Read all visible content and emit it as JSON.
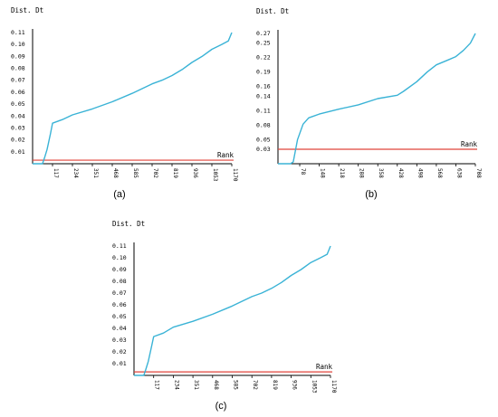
{
  "colors": {
    "curve": "#3ab3d6",
    "threshold": "#e0433a",
    "axis": "#000000",
    "text": "#000000"
  },
  "chart_data": [
    {
      "id": "a",
      "type": "line",
      "caption": "(a)",
      "ylabel": "Dist. Dt",
      "xlabel": "Rank",
      "yticks": [
        "0.01",
        "0.02",
        "0.03",
        "0.04",
        "0.05",
        "0.06",
        "0.07",
        "0.08",
        "0.09",
        "0.10",
        "0.11"
      ],
      "xticks": [
        "117",
        "234",
        "351",
        "468",
        "585",
        "702",
        "819",
        "936",
        "1053",
        "1170"
      ],
      "threshold": 0.003,
      "x": [
        0,
        58,
        70,
        85,
        105,
        117,
        175,
        234,
        351,
        468,
        585,
        702,
        760,
        819,
        878,
        936,
        995,
        1053,
        1110,
        1150,
        1170
      ],
      "y": [
        0.0,
        0.0,
        0.005,
        0.012,
        0.025,
        0.034,
        0.037,
        0.041,
        0.046,
        0.052,
        0.059,
        0.067,
        0.07,
        0.074,
        0.079,
        0.085,
        0.09,
        0.096,
        0.1,
        0.103,
        0.11
      ]
    },
    {
      "id": "b",
      "type": "line",
      "caption": "(b)",
      "ylabel": "Dist. Dt",
      "xlabel": "Rank",
      "yticks": [
        "0.03",
        "0.05",
        "0.08",
        "0.11",
        "0.14",
        "0.16",
        "0.19",
        "0.22",
        "0.25",
        "0.27"
      ],
      "xticks": [
        "78",
        "148",
        "218",
        "288",
        "358",
        "428",
        "498",
        "568",
        "638",
        "708"
      ],
      "threshold": 0.03,
      "x": [
        0,
        45,
        55,
        70,
        90,
        110,
        148,
        218,
        288,
        358,
        428,
        450,
        498,
        535,
        568,
        610,
        638,
        665,
        690,
        708
      ],
      "y": [
        0.0,
        0.0,
        0.004,
        0.05,
        0.082,
        0.095,
        0.103,
        0.113,
        0.122,
        0.135,
        0.142,
        0.15,
        0.17,
        0.19,
        0.205,
        0.215,
        0.222,
        0.235,
        0.25,
        0.27
      ]
    },
    {
      "id": "c",
      "type": "line",
      "caption": "(c)",
      "ylabel": "Dist. Dt",
      "xlabel": "Rank",
      "yticks": [
        "0.01",
        "0.02",
        "0.03",
        "0.04",
        "0.05",
        "0.06",
        "0.07",
        "0.08",
        "0.09",
        "0.10",
        "0.11"
      ],
      "xticks": [
        "117",
        "234",
        "351",
        "468",
        "585",
        "702",
        "819",
        "936",
        "1053",
        "1170"
      ],
      "threshold": 0.003,
      "x": [
        0,
        58,
        70,
        85,
        105,
        117,
        175,
        234,
        351,
        468,
        585,
        702,
        760,
        819,
        878,
        936,
        995,
        1053,
        1110,
        1150,
        1170
      ],
      "y": [
        0.0,
        0.0,
        0.005,
        0.012,
        0.025,
        0.033,
        0.036,
        0.041,
        0.046,
        0.052,
        0.059,
        0.067,
        0.07,
        0.074,
        0.079,
        0.085,
        0.09,
        0.096,
        0.1,
        0.103,
        0.11
      ]
    }
  ]
}
